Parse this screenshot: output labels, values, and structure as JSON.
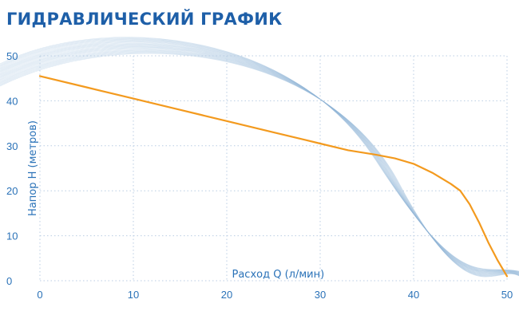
{
  "colors": {
    "title": "#1e5fa8",
    "axis_text": "#2a72b8",
    "grid": "#b9cde3",
    "curve": "#f39a1e",
    "swoosh": "#8fb4d6"
  },
  "chart_data": {
    "type": "line",
    "title": "ГИДРАВЛИЧЕСКИЙ ГРАФИК",
    "xlabel": "Расход Q (л/мин)",
    "ylabel": "Напор H (метров)",
    "xlim": [
      0,
      50
    ],
    "ylim": [
      0,
      50
    ],
    "x_ticks": [
      0,
      10,
      20,
      30,
      40,
      50
    ],
    "y_ticks": [
      0,
      10,
      20,
      30,
      40,
      50
    ],
    "grid": true,
    "series": [
      {
        "x": [
          0,
          5,
          10,
          15,
          20,
          25,
          30,
          33,
          36,
          38,
          40,
          42,
          44,
          45,
          46,
          47,
          48,
          49,
          50
        ],
        "y": [
          45.5,
          43,
          40.5,
          38,
          35.5,
          33,
          30.5,
          29,
          28,
          27.2,
          26,
          24,
          21.5,
          20,
          17,
          13,
          8.5,
          4.5,
          1
        ]
      }
    ]
  }
}
